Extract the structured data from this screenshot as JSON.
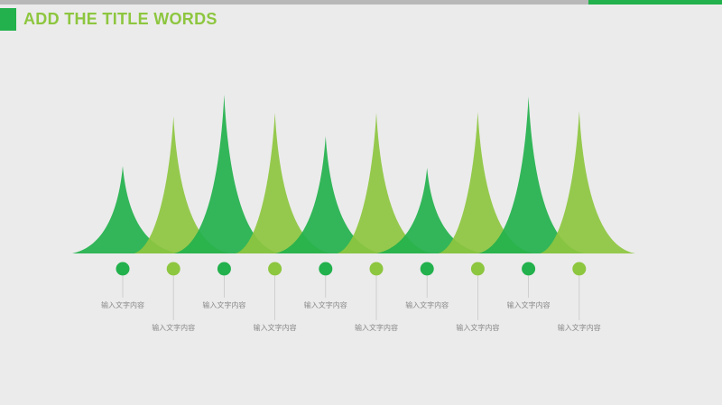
{
  "header": {
    "title": "ADD THE TITLE WORDS"
  },
  "colors": {
    "dark_green": "#22b14c",
    "light_green": "#8dc63f",
    "top_bar_gray": "#b8b8b8",
    "background": "#ebebeb",
    "label_text": "#8a8a8a"
  },
  "chart_data": {
    "type": "area",
    "title": "",
    "xlabel": "",
    "ylabel": "",
    "categories": [
      "输入文字内容",
      "输入文字内容",
      "输入文字内容",
      "输入文字内容",
      "输入文字内容",
      "输入文字内容",
      "输入文字内容",
      "输入文字内容",
      "输入文字内容",
      "输入文字内容"
    ],
    "values": [
      97,
      152,
      176,
      156,
      130,
      156,
      95,
      157,
      174,
      158
    ],
    "peak_colors": [
      "dark",
      "light",
      "dark",
      "light",
      "dark",
      "light",
      "dark",
      "light",
      "dark",
      "light"
    ],
    "grid": false,
    "legend": "none"
  }
}
